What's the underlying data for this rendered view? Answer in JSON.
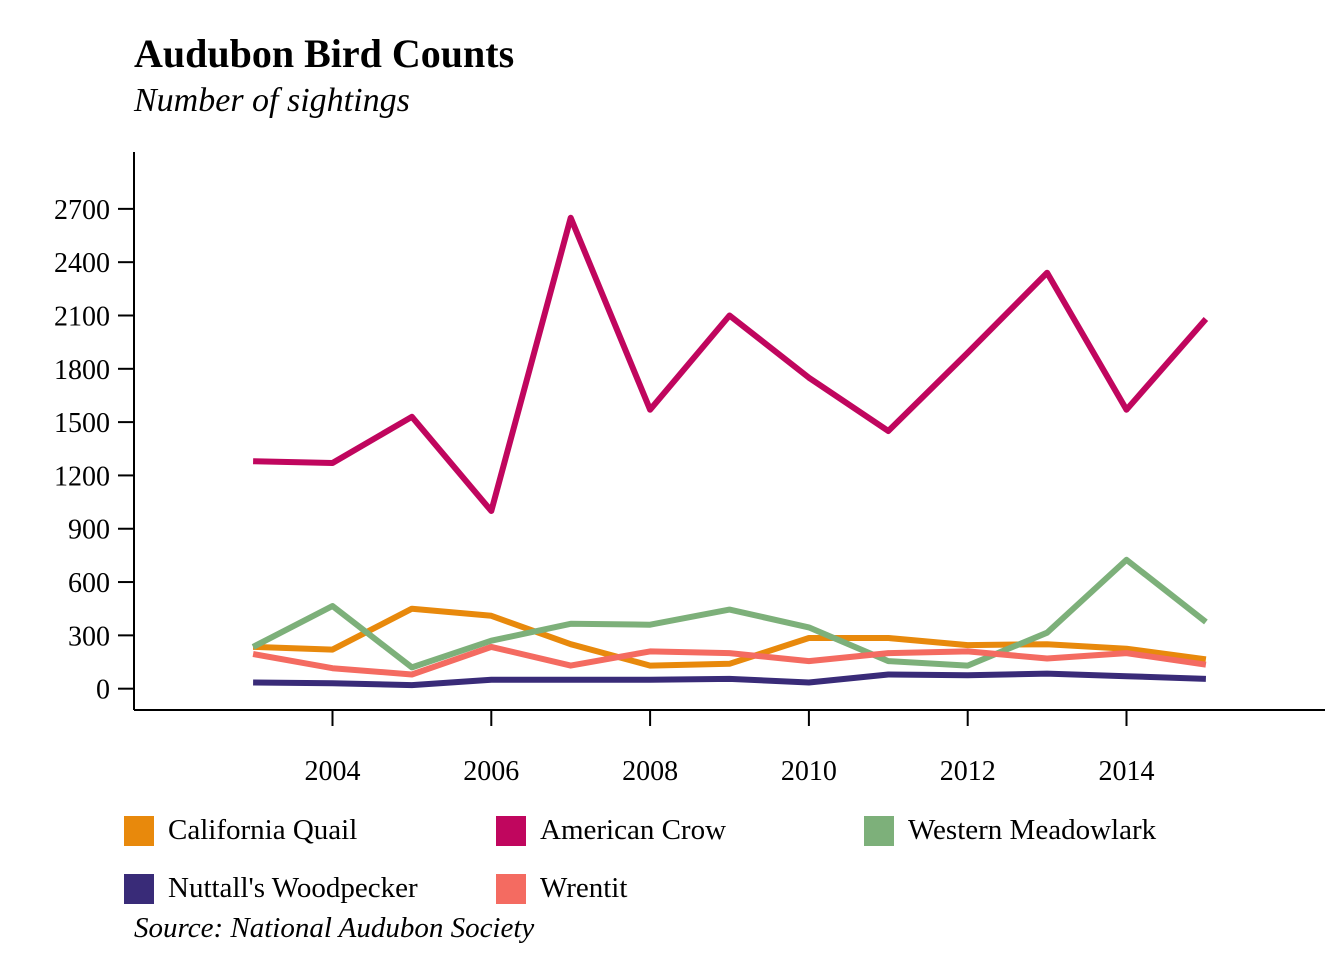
{
  "chart_data": {
    "type": "line",
    "title": "Audubon Bird Counts",
    "subtitle": "Number of sightings",
    "source": "Source: National Audubon Society",
    "xlabel": "",
    "ylabel": "",
    "x": [
      2003,
      2004,
      2005,
      2006,
      2007,
      2008,
      2009,
      2010,
      2011,
      2012,
      2013,
      2014,
      2015
    ],
    "xticks": [
      2004,
      2006,
      2008,
      2010,
      2012,
      2014
    ],
    "xtick_labels": [
      "2004",
      "2006",
      "2008",
      "2010",
      "2012",
      "2014"
    ],
    "xlim": [
      2001.5,
      2016.5
    ],
    "yticks": [
      0,
      300,
      600,
      900,
      1200,
      1500,
      1800,
      2100,
      2400,
      2700
    ],
    "ytick_labels": [
      "0",
      "300",
      "600",
      "900",
      "1200",
      "1500",
      "1800",
      "2100",
      "2400",
      "2700"
    ],
    "ylim": [
      -120,
      3020
    ],
    "grid": false,
    "legend_position": "bottom",
    "series": [
      {
        "name": "California Quail",
        "color": "#E8890C",
        "values": [
          235,
          220,
          450,
          410,
          250,
          130,
          140,
          285,
          285,
          245,
          250,
          225,
          165
        ]
      },
      {
        "name": "American Crow",
        "color": "#C0065E",
        "values": [
          1280,
          1270,
          1530,
          1000,
          2650,
          1570,
          2100,
          1750,
          1450,
          1890,
          2340,
          1570,
          2080
        ]
      },
      {
        "name": "Western Meadowlark",
        "color": "#7DB07A",
        "values": [
          235,
          465,
          120,
          270,
          365,
          360,
          445,
          345,
          155,
          130,
          315,
          725,
          375
        ]
      },
      {
        "name": "Nuttall's Woodpecker",
        "color": "#392B78",
        "values": [
          35,
          30,
          20,
          50,
          50,
          50,
          55,
          35,
          80,
          75,
          85,
          70,
          55
        ]
      },
      {
        "name": "Wrentit",
        "color": "#F46B61",
        "values": [
          195,
          115,
          80,
          235,
          130,
          210,
          200,
          155,
          200,
          210,
          170,
          200,
          135
        ]
      }
    ]
  }
}
